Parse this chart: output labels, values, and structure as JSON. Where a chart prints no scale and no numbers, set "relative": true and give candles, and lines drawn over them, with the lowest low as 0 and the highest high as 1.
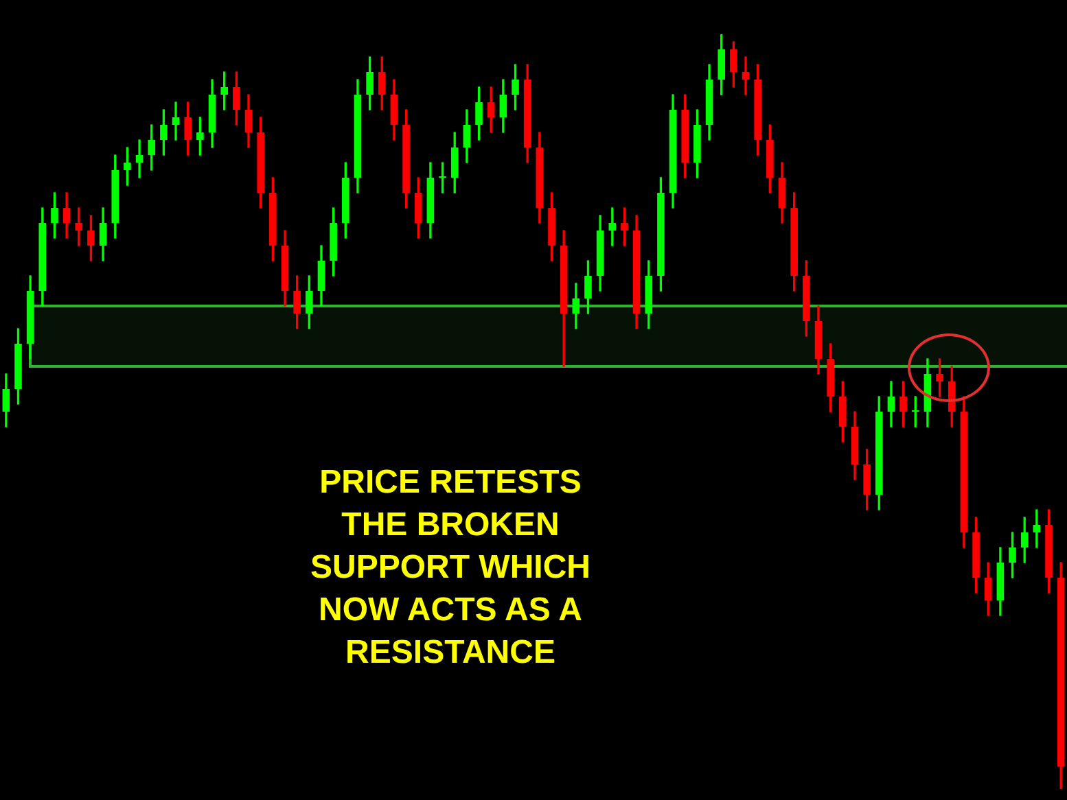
{
  "chart_data": {
    "type": "candlestick",
    "relative": true,
    "categories": [
      null,
      null,
      null,
      null,
      null,
      null,
      null,
      null,
      null,
      null,
      null,
      null,
      null,
      null,
      null,
      null,
      null,
      null,
      null,
      null,
      null,
      null,
      null,
      null,
      null,
      null,
      null,
      null,
      null,
      null,
      null,
      null,
      null,
      null,
      null,
      null,
      null,
      null,
      null,
      null,
      null,
      null,
      null,
      null,
      null,
      null,
      null,
      null,
      null,
      null,
      null,
      null,
      null,
      null,
      null,
      null,
      null,
      null,
      null,
      null,
      null,
      null,
      null,
      null,
      null,
      null,
      null,
      null,
      null,
      null,
      null,
      null,
      null,
      null,
      null,
      null,
      null,
      null,
      null,
      null,
      null,
      null,
      null,
      null,
      null,
      null,
      null,
      null
    ],
    "ohlc": [
      [
        0.5,
        0.55,
        0.48,
        0.53
      ],
      [
        0.53,
        0.61,
        0.51,
        0.59
      ],
      [
        0.59,
        0.68,
        0.57,
        0.66
      ],
      [
        0.66,
        0.77,
        0.64,
        0.75
      ],
      [
        0.75,
        0.79,
        0.73,
        0.77
      ],
      [
        0.77,
        0.79,
        0.73,
        0.75
      ],
      [
        0.75,
        0.77,
        0.72,
        0.74
      ],
      [
        0.74,
        0.76,
        0.7,
        0.72
      ],
      [
        0.72,
        0.77,
        0.7,
        0.75
      ],
      [
        0.75,
        0.84,
        0.73,
        0.82
      ],
      [
        0.82,
        0.85,
        0.8,
        0.83
      ],
      [
        0.83,
        0.86,
        0.81,
        0.84
      ],
      [
        0.84,
        0.88,
        0.82,
        0.86
      ],
      [
        0.86,
        0.9,
        0.84,
        0.88
      ],
      [
        0.88,
        0.91,
        0.86,
        0.89
      ],
      [
        0.89,
        0.91,
        0.84,
        0.86
      ],
      [
        0.86,
        0.89,
        0.84,
        0.87
      ],
      [
        0.87,
        0.94,
        0.85,
        0.92
      ],
      [
        0.92,
        0.95,
        0.9,
        0.93
      ],
      [
        0.93,
        0.95,
        0.88,
        0.9
      ],
      [
        0.9,
        0.92,
        0.85,
        0.87
      ],
      [
        0.87,
        0.89,
        0.77,
        0.79
      ],
      [
        0.79,
        0.81,
        0.7,
        0.72
      ],
      [
        0.72,
        0.74,
        0.64,
        0.66
      ],
      [
        0.66,
        0.68,
        0.61,
        0.63
      ],
      [
        0.63,
        0.68,
        0.61,
        0.66
      ],
      [
        0.66,
        0.72,
        0.64,
        0.7
      ],
      [
        0.7,
        0.77,
        0.68,
        0.75
      ],
      [
        0.75,
        0.83,
        0.73,
        0.81
      ],
      [
        0.81,
        0.94,
        0.79,
        0.92
      ],
      [
        0.92,
        0.97,
        0.9,
        0.95
      ],
      [
        0.95,
        0.97,
        0.9,
        0.92
      ],
      [
        0.92,
        0.94,
        0.86,
        0.88
      ],
      [
        0.88,
        0.9,
        0.77,
        0.79
      ],
      [
        0.79,
        0.81,
        0.73,
        0.75
      ],
      [
        0.75,
        0.83,
        0.73,
        0.81
      ],
      [
        0.81,
        0.83,
        0.79,
        0.81
      ],
      [
        0.81,
        0.87,
        0.79,
        0.85
      ],
      [
        0.85,
        0.9,
        0.83,
        0.88
      ],
      [
        0.88,
        0.93,
        0.86,
        0.91
      ],
      [
        0.91,
        0.93,
        0.87,
        0.89
      ],
      [
        0.89,
        0.94,
        0.87,
        0.92
      ],
      [
        0.92,
        0.96,
        0.9,
        0.94
      ],
      [
        0.94,
        0.96,
        0.83,
        0.85
      ],
      [
        0.85,
        0.87,
        0.75,
        0.77
      ],
      [
        0.77,
        0.79,
        0.7,
        0.72
      ],
      [
        0.72,
        0.74,
        0.56,
        0.63
      ],
      [
        0.63,
        0.67,
        0.61,
        0.65
      ],
      [
        0.65,
        0.7,
        0.63,
        0.68
      ],
      [
        0.68,
        0.76,
        0.66,
        0.74
      ],
      [
        0.74,
        0.77,
        0.72,
        0.75
      ],
      [
        0.75,
        0.77,
        0.72,
        0.74
      ],
      [
        0.74,
        0.76,
        0.61,
        0.63
      ],
      [
        0.63,
        0.7,
        0.61,
        0.68
      ],
      [
        0.68,
        0.81,
        0.66,
        0.79
      ],
      [
        0.79,
        0.92,
        0.77,
        0.9
      ],
      [
        0.9,
        0.92,
        0.81,
        0.83
      ],
      [
        0.83,
        0.9,
        0.81,
        0.88
      ],
      [
        0.88,
        0.96,
        0.86,
        0.94
      ],
      [
        0.94,
        1,
        0.92,
        0.98
      ],
      [
        0.98,
        0.99,
        0.93,
        0.95
      ],
      [
        0.95,
        0.97,
        0.92,
        0.94
      ],
      [
        0.94,
        0.96,
        0.84,
        0.86
      ],
      [
        0.86,
        0.88,
        0.79,
        0.81
      ],
      [
        0.81,
        0.83,
        0.75,
        0.77
      ],
      [
        0.77,
        0.79,
        0.66,
        0.68
      ],
      [
        0.68,
        0.7,
        0.6,
        0.62
      ],
      [
        0.62,
        0.64,
        0.55,
        0.57
      ],
      [
        0.57,
        0.59,
        0.5,
        0.52
      ],
      [
        0.52,
        0.54,
        0.46,
        0.48
      ],
      [
        0.48,
        0.5,
        0.41,
        0.43
      ],
      [
        0.43,
        0.45,
        0.37,
        0.39
      ],
      [
        0.39,
        0.52,
        0.37,
        0.5
      ],
      [
        0.5,
        0.54,
        0.48,
        0.52
      ],
      [
        0.52,
        0.54,
        0.48,
        0.5
      ],
      [
        0.5,
        0.52,
        0.48,
        0.5
      ],
      [
        0.5,
        0.57,
        0.48,
        0.55
      ],
      [
        0.55,
        0.57,
        0.52,
        0.54
      ],
      [
        0.54,
        0.56,
        0.48,
        0.5
      ],
      [
        0.5,
        0.52,
        0.32,
        0.34
      ],
      [
        0.34,
        0.36,
        0.26,
        0.28
      ],
      [
        0.28,
        0.3,
        0.23,
        0.25
      ],
      [
        0.25,
        0.32,
        0.23,
        0.3
      ],
      [
        0.3,
        0.34,
        0.28,
        0.32
      ],
      [
        0.32,
        0.36,
        0.3,
        0.34
      ],
      [
        0.34,
        0.37,
        0.32,
        0.35
      ],
      [
        0.35,
        0.37,
        0.26,
        0.28
      ],
      [
        0.28,
        0.3,
        0,
        0.03
      ]
    ],
    "colors": [
      "#00ff00",
      "#00ff00",
      "#00ff00",
      "#00ff00",
      "#00ff00",
      "#ff0000",
      "#ff0000",
      "#ff0000",
      "#00ff00",
      "#00ff00",
      "#00ff00",
      "#00ff00",
      "#00ff00",
      "#00ff00",
      "#00ff00",
      "#ff0000",
      "#00ff00",
      "#00ff00",
      "#00ff00",
      "#ff0000",
      "#ff0000",
      "#ff0000",
      "#ff0000",
      "#ff0000",
      "#ff0000",
      "#00ff00",
      "#00ff00",
      "#00ff00",
      "#00ff00",
      "#00ff00",
      "#00ff00",
      "#ff0000",
      "#ff0000",
      "#ff0000",
      "#ff0000",
      "#00ff00",
      "#00ff00",
      "#00ff00",
      "#00ff00",
      "#00ff00",
      "#ff0000",
      "#00ff00",
      "#00ff00",
      "#ff0000",
      "#ff0000",
      "#ff0000",
      "#ff0000",
      "#00ff00",
      "#00ff00",
      "#00ff00",
      "#00ff00",
      "#ff0000",
      "#ff0000",
      "#00ff00",
      "#00ff00",
      "#00ff00",
      "#ff0000",
      "#00ff00",
      "#00ff00",
      "#00ff00",
      "#ff0000",
      "#ff0000",
      "#ff0000",
      "#ff0000",
      "#ff0000",
      "#ff0000",
      "#ff0000",
      "#ff0000",
      "#ff0000",
      "#ff0000",
      "#ff0000",
      "#ff0000",
      "#00ff00",
      "#00ff00",
      "#ff0000",
      "#00ff00",
      "#00ff00",
      "#ff0000",
      "#ff0000",
      "#ff0000",
      "#ff0000",
      "#ff0000",
      "#00ff00",
      "#00ff00",
      "#00ff00",
      "#00ff00",
      "#ff0000",
      "#ff0000"
    ],
    "bands": [
      {
        "axis": "y",
        "from": 0.56,
        "to": 0.64,
        "color": "#2db52d"
      }
    ],
    "annotations": [
      "PRICE RETESTS THE BROKEN SUPPORT WHICH NOW ACTS AS A RESISTANCE"
    ]
  }
}
